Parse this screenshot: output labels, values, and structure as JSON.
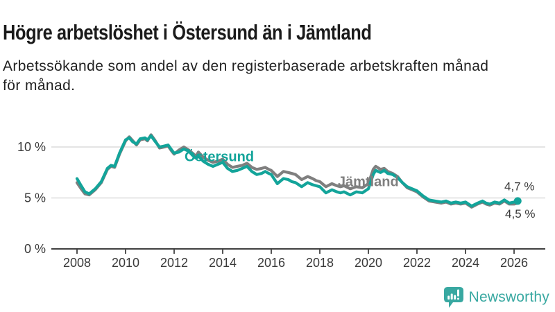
{
  "header": {
    "title": "Högre arbetslöshet i Östersund än i Jämtland",
    "subtitle_lines": [
      "Arbetssökande som andel av den registerbaserade arbetskraften månad",
      "för månad."
    ]
  },
  "footer": {
    "logo_text": "Newsworthy",
    "logo_icon": "newsworthy-chart-bubble"
  },
  "colors": {
    "ostersund": "#13a49a",
    "jamtland": "#7f7f7f",
    "logo": "#38a8a1",
    "axis_text": "#3a3a3a",
    "grid_line": "#dcdcdc",
    "axis_line": "#404040"
  },
  "chart_data": {
    "type": "line",
    "title": "",
    "xlabel": "",
    "ylabel": "",
    "grid": "horizontal",
    "legend_position": "inline-labels",
    "xlim": [
      2007.45,
      2027.3
    ],
    "ylim": [
      0,
      12.3
    ],
    "x_ticks": [
      2008,
      2010,
      2012,
      2014,
      2016,
      2018,
      2020,
      2022,
      2024,
      2026
    ],
    "y_ticks": [
      {
        "value": 0,
        "label": "0 %"
      },
      {
        "value": 5,
        "label": "5 %"
      },
      {
        "value": 10,
        "label": "10 %"
      }
    ],
    "series": [
      {
        "name": "Jämtland",
        "color": "#7f7f7f",
        "end_label": "4,5 %",
        "end_dot": false,
        "points": [
          [
            2008.0,
            6.5
          ],
          [
            2008.17,
            5.9
          ],
          [
            2008.33,
            5.4
          ],
          [
            2008.5,
            5.3
          ],
          [
            2008.75,
            5.8
          ],
          [
            2009.0,
            6.5
          ],
          [
            2009.25,
            7.8
          ],
          [
            2009.4,
            8.1
          ],
          [
            2009.55,
            8.0
          ],
          [
            2009.75,
            9.3
          ],
          [
            2010.0,
            10.6
          ],
          [
            2010.15,
            11.0
          ],
          [
            2010.3,
            10.6
          ],
          [
            2010.45,
            10.2
          ],
          [
            2010.6,
            10.7
          ],
          [
            2010.8,
            10.8
          ],
          [
            2010.9,
            10.6
          ],
          [
            2011.05,
            11.2
          ],
          [
            2011.2,
            10.7
          ],
          [
            2011.4,
            9.9
          ],
          [
            2011.6,
            10.0
          ],
          [
            2011.75,
            10.1
          ],
          [
            2011.9,
            9.6
          ],
          [
            2012.0,
            9.3
          ],
          [
            2012.2,
            9.7
          ],
          [
            2012.4,
            10.0
          ],
          [
            2012.6,
            9.7
          ],
          [
            2012.75,
            9.4
          ],
          [
            2012.9,
            9.1
          ],
          [
            2013.0,
            9.5
          ],
          [
            2013.2,
            9.0
          ],
          [
            2013.4,
            8.7
          ],
          [
            2013.6,
            8.5
          ],
          [
            2013.8,
            8.6
          ],
          [
            2014.0,
            8.8
          ],
          [
            2014.2,
            8.3
          ],
          [
            2014.4,
            8.0
          ],
          [
            2014.6,
            8.1
          ],
          [
            2014.8,
            8.2
          ],
          [
            2015.0,
            8.4
          ],
          [
            2015.2,
            8.0
          ],
          [
            2015.4,
            7.8
          ],
          [
            2015.6,
            7.9
          ],
          [
            2015.75,
            8.0
          ],
          [
            2015.9,
            7.8
          ],
          [
            2016.0,
            7.7
          ],
          [
            2016.25,
            7.1
          ],
          [
            2016.5,
            7.6
          ],
          [
            2016.7,
            7.5
          ],
          [
            2016.85,
            7.4
          ],
          [
            2017.0,
            7.3
          ],
          [
            2017.25,
            6.8
          ],
          [
            2017.5,
            7.1
          ],
          [
            2017.7,
            6.9
          ],
          [
            2017.85,
            6.7
          ],
          [
            2018.0,
            6.6
          ],
          [
            2018.25,
            6.1
          ],
          [
            2018.5,
            6.4
          ],
          [
            2018.7,
            6.2
          ],
          [
            2018.85,
            6.1
          ],
          [
            2019.0,
            6.2
          ],
          [
            2019.25,
            5.9
          ],
          [
            2019.5,
            6.1
          ],
          [
            2019.75,
            6.0
          ],
          [
            2020.0,
            6.4
          ],
          [
            2020.2,
            7.8
          ],
          [
            2020.3,
            8.1
          ],
          [
            2020.5,
            7.8
          ],
          [
            2020.65,
            7.9
          ],
          [
            2020.8,
            7.6
          ],
          [
            2021.0,
            7.4
          ],
          [
            2021.2,
            7.1
          ],
          [
            2021.4,
            6.5
          ],
          [
            2021.6,
            6.0
          ],
          [
            2021.8,
            5.8
          ],
          [
            2022.0,
            5.6
          ],
          [
            2022.25,
            5.1
          ],
          [
            2022.5,
            4.7
          ],
          [
            2022.75,
            4.6
          ],
          [
            2023.0,
            4.5
          ],
          [
            2023.2,
            4.6
          ],
          [
            2023.4,
            4.4
          ],
          [
            2023.6,
            4.5
          ],
          [
            2023.8,
            4.4
          ],
          [
            2024.0,
            4.5
          ],
          [
            2024.25,
            4.1
          ],
          [
            2024.5,
            4.4
          ],
          [
            2024.7,
            4.6
          ],
          [
            2024.85,
            4.4
          ],
          [
            2025.0,
            4.3
          ],
          [
            2025.2,
            4.5
          ],
          [
            2025.4,
            4.4
          ],
          [
            2025.6,
            4.7
          ],
          [
            2025.8,
            4.4
          ],
          [
            2026.0,
            4.4
          ],
          [
            2026.15,
            4.5
          ]
        ]
      },
      {
        "name": "Östersund",
        "color": "#13a49a",
        "end_label": "4,7 %",
        "end_dot": true,
        "points": [
          [
            2008.0,
            6.9
          ],
          [
            2008.17,
            6.2
          ],
          [
            2008.33,
            5.6
          ],
          [
            2008.5,
            5.4
          ],
          [
            2008.75,
            5.9
          ],
          [
            2009.0,
            6.6
          ],
          [
            2009.25,
            7.9
          ],
          [
            2009.4,
            8.2
          ],
          [
            2009.55,
            8.1
          ],
          [
            2009.75,
            9.4
          ],
          [
            2010.0,
            10.7
          ],
          [
            2010.15,
            10.9
          ],
          [
            2010.3,
            10.5
          ],
          [
            2010.45,
            10.3
          ],
          [
            2010.6,
            10.8
          ],
          [
            2010.8,
            10.9
          ],
          [
            2010.9,
            10.7
          ],
          [
            2011.05,
            11.1
          ],
          [
            2011.2,
            10.6
          ],
          [
            2011.4,
            10.0
          ],
          [
            2011.6,
            10.1
          ],
          [
            2011.75,
            10.2
          ],
          [
            2011.9,
            9.7
          ],
          [
            2012.0,
            9.4
          ],
          [
            2012.2,
            9.5
          ],
          [
            2012.4,
            9.8
          ],
          [
            2012.6,
            9.6
          ],
          [
            2012.75,
            9.2
          ],
          [
            2012.9,
            8.9
          ],
          [
            2013.0,
            9.1
          ],
          [
            2013.2,
            8.6
          ],
          [
            2013.4,
            8.3
          ],
          [
            2013.6,
            8.1
          ],
          [
            2013.8,
            8.3
          ],
          [
            2014.0,
            8.5
          ],
          [
            2014.2,
            7.9
          ],
          [
            2014.4,
            7.6
          ],
          [
            2014.6,
            7.7
          ],
          [
            2014.8,
            7.9
          ],
          [
            2015.0,
            8.1
          ],
          [
            2015.2,
            7.6
          ],
          [
            2015.4,
            7.3
          ],
          [
            2015.6,
            7.4
          ],
          [
            2015.75,
            7.6
          ],
          [
            2015.9,
            7.4
          ],
          [
            2016.0,
            7.3
          ],
          [
            2016.25,
            6.4
          ],
          [
            2016.5,
            6.9
          ],
          [
            2016.7,
            6.8
          ],
          [
            2016.85,
            6.6
          ],
          [
            2017.0,
            6.5
          ],
          [
            2017.25,
            6.1
          ],
          [
            2017.5,
            6.5
          ],
          [
            2017.7,
            6.3
          ],
          [
            2017.85,
            6.2
          ],
          [
            2018.0,
            6.1
          ],
          [
            2018.25,
            5.5
          ],
          [
            2018.5,
            5.8
          ],
          [
            2018.7,
            5.6
          ],
          [
            2018.85,
            5.5
          ],
          [
            2019.0,
            5.6
          ],
          [
            2019.25,
            5.3
          ],
          [
            2019.5,
            5.6
          ],
          [
            2019.75,
            5.5
          ],
          [
            2020.0,
            5.9
          ],
          [
            2020.2,
            7.3
          ],
          [
            2020.3,
            7.7
          ],
          [
            2020.5,
            7.5
          ],
          [
            2020.65,
            7.7
          ],
          [
            2020.8,
            7.4
          ],
          [
            2021.0,
            7.3
          ],
          [
            2021.2,
            7.0
          ],
          [
            2021.4,
            6.5
          ],
          [
            2021.6,
            6.1
          ],
          [
            2021.8,
            5.9
          ],
          [
            2022.0,
            5.7
          ],
          [
            2022.25,
            5.2
          ],
          [
            2022.5,
            4.8
          ],
          [
            2022.75,
            4.7
          ],
          [
            2023.0,
            4.6
          ],
          [
            2023.2,
            4.7
          ],
          [
            2023.4,
            4.5
          ],
          [
            2023.6,
            4.6
          ],
          [
            2023.8,
            4.5
          ],
          [
            2024.0,
            4.6
          ],
          [
            2024.25,
            4.2
          ],
          [
            2024.5,
            4.5
          ],
          [
            2024.7,
            4.7
          ],
          [
            2024.85,
            4.5
          ],
          [
            2025.0,
            4.4
          ],
          [
            2025.2,
            4.6
          ],
          [
            2025.4,
            4.5
          ],
          [
            2025.6,
            4.8
          ],
          [
            2025.8,
            4.5
          ],
          [
            2026.0,
            4.6
          ],
          [
            2026.15,
            4.7
          ]
        ]
      }
    ],
    "annotations": [
      {
        "text": "Östersund",
        "x": 2012.43,
        "y": 8.6,
        "color": "#13a49a",
        "weight": "bold",
        "size": 20,
        "name": "series-label-ostersund"
      },
      {
        "text": "Jämtland",
        "x": 2018.74,
        "y": 6.15,
        "color": "#7f7f7f",
        "weight": "bold",
        "size": 20,
        "name": "series-label-jamtland"
      },
      {
        "text": "4,7 %",
        "x": 2025.6,
        "y": 5.75,
        "color": "#3a3a3a",
        "weight": "normal",
        "size": 17,
        "name": "end-value-label-ostersund"
      },
      {
        "text": "4,5 %",
        "x": 2025.63,
        "y": 3.05,
        "color": "#3a3a3a",
        "weight": "normal",
        "size": 17,
        "name": "end-value-label-jamtland"
      }
    ]
  }
}
